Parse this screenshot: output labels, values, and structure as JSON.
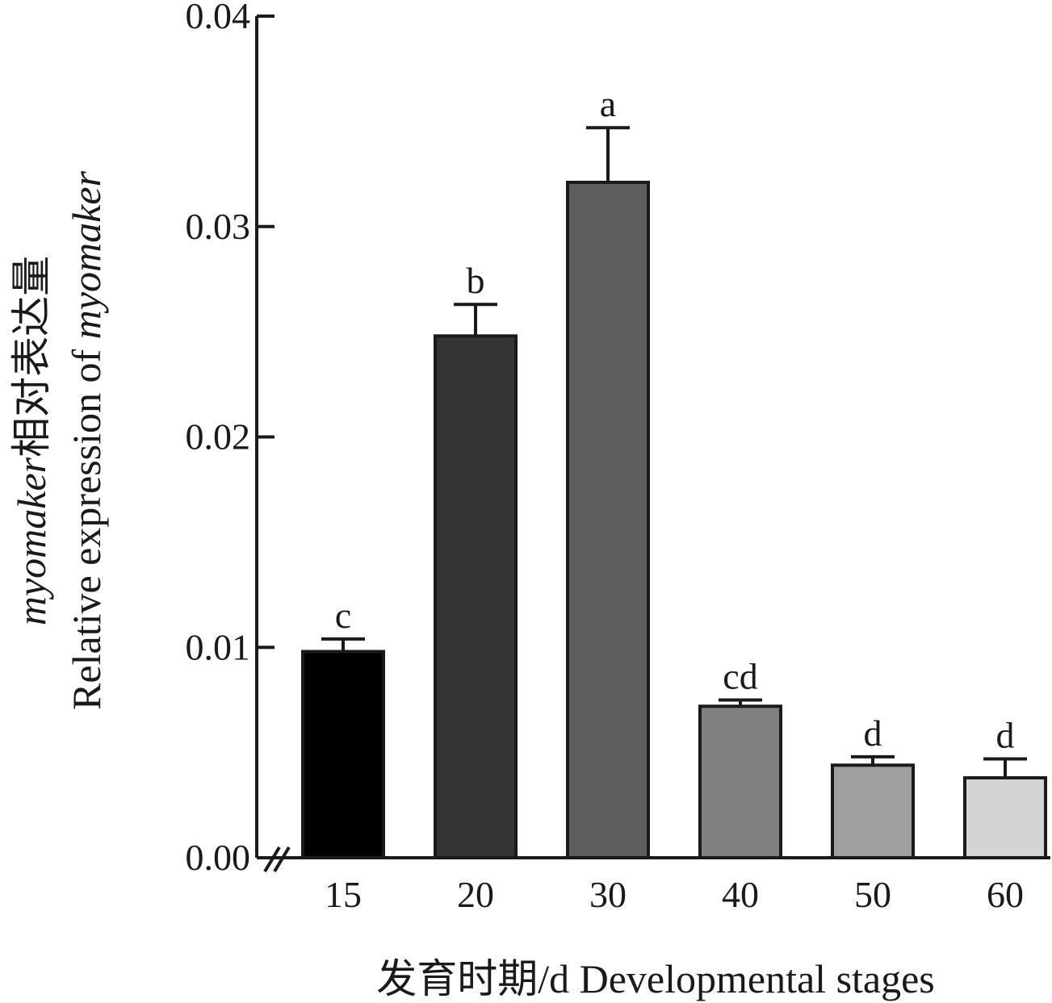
{
  "chart_data": {
    "type": "bar",
    "categories": [
      "15",
      "20",
      "30",
      "40",
      "50",
      "60"
    ],
    "values": [
      0.0098,
      0.0248,
      0.0321,
      0.0072,
      0.0044,
      0.0038
    ],
    "errors": [
      0.0006,
      0.0015,
      0.0026,
      0.0003,
      0.0004,
      0.0009
    ],
    "significance": [
      "c",
      "b",
      "a",
      "cd",
      "d",
      "d"
    ],
    "bar_colors": [
      "#000000",
      "#333333",
      "#5e5e5e",
      "#808080",
      "#a0a0a0",
      "#d4d4d4"
    ],
    "ylim": [
      0,
      0.04
    ],
    "yticks": [
      "0.00",
      "0.01",
      "0.02",
      "0.03",
      "0.04"
    ],
    "ylabel_line1_italic": "myomaker",
    "ylabel_line1_cn": "相对表达量",
    "ylabel_line2_text": "Relative expression of ",
    "ylabel_line2_italic": "myomaker",
    "xlabel": "发育时期/d  Developmental stages",
    "axis_break": true,
    "grid": false,
    "legend": "none"
  }
}
